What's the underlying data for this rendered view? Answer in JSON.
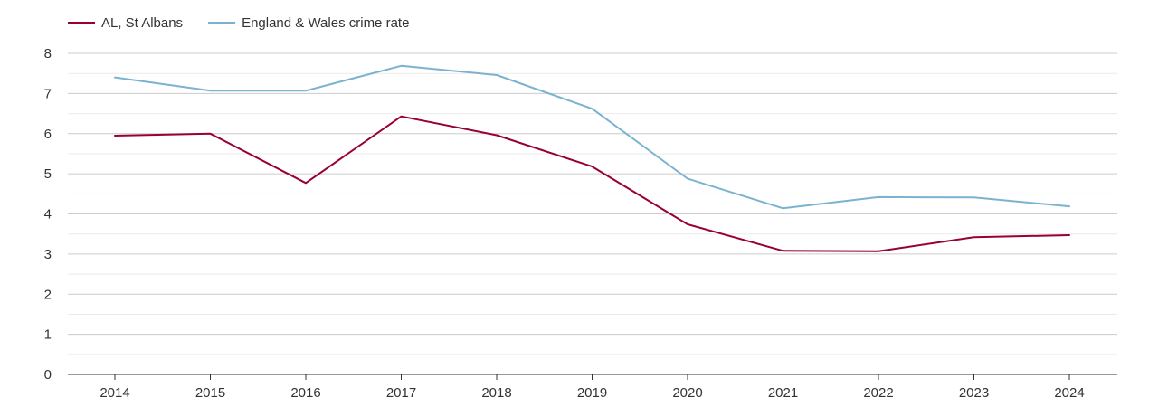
{
  "chart_data": {
    "type": "line",
    "x": [
      "2014",
      "2015",
      "2016",
      "2017",
      "2018",
      "2019",
      "2020",
      "2021",
      "2022",
      "2023",
      "2024"
    ],
    "series": [
      {
        "name": "AL, St Albans",
        "color": "#990033",
        "values": [
          5.95,
          6.0,
          4.77,
          6.43,
          5.96,
          5.18,
          3.74,
          3.08,
          3.07,
          3.42,
          3.47
        ]
      },
      {
        "name": "England & Wales crime rate",
        "color": "#7ab2d0",
        "values": [
          7.4,
          7.07,
          7.07,
          7.69,
          7.46,
          6.62,
          4.88,
          4.14,
          4.42,
          4.41,
          4.19
        ]
      }
    ],
    "y_ticks": [
      "0",
      "1",
      "2",
      "3",
      "4",
      "5",
      "6",
      "7",
      "8"
    ],
    "ylim": [
      0,
      8
    ],
    "grid": true,
    "legend_position": "top-left"
  }
}
